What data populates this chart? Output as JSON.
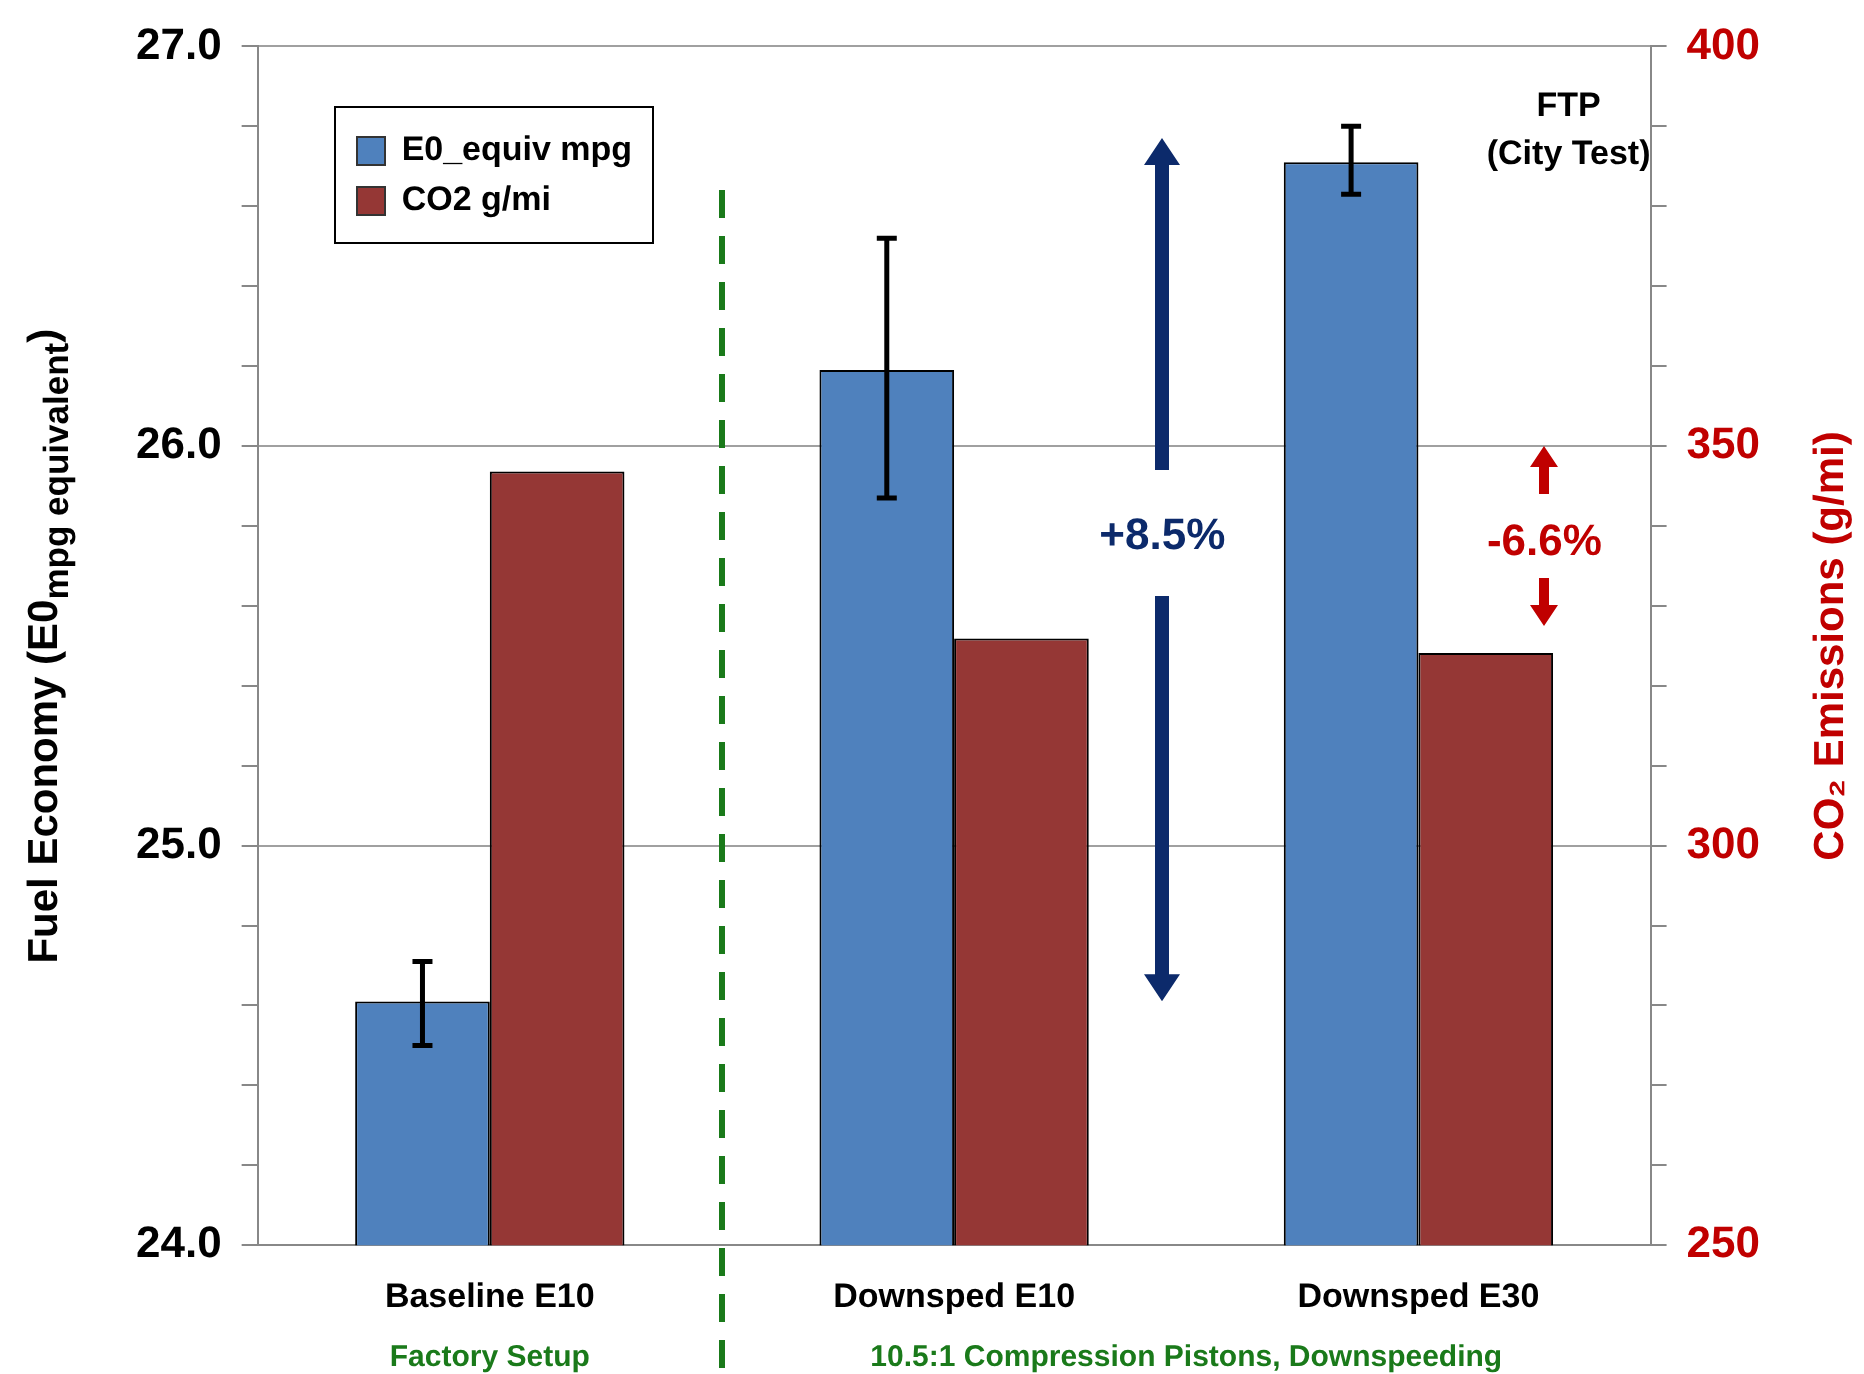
{
  "chart_data": {
    "type": "bar",
    "categories": [
      "Baseline E10",
      "Downsped E10",
      "Downsped E30"
    ],
    "ylabel": "Fuel Economy (E0$_{mpg equivalent}$)",
    "y2label": "CO₂ Emissions (g/mi)",
    "series": [
      {
        "name": "E0_equiv mpg",
        "color": "#4f81bd",
        "values": [
          24.61,
          26.19,
          26.71
        ],
        "errors": [
          [
            24.5,
            24.71
          ],
          [
            25.87,
            26.52
          ],
          [
            26.63,
            26.8
          ]
        ]
      },
      {
        "name": "CO2 g/mi",
        "color": "#953735",
        "axis": "y2",
        "values": [
          346.8,
          325.9,
          324.1
        ]
      }
    ],
    "ylim": [
      24,
      27
    ],
    "yticks": [
      {
        "value": 24,
        "label": "24.0"
      },
      {
        "value": 24.2,
        "label": null
      },
      {
        "value": 24.4,
        "label": null
      },
      {
        "value": 24.6,
        "label": null
      },
      {
        "value": 24.8,
        "label": null
      },
      {
        "value": 25,
        "label": "25.0"
      },
      {
        "value": 25.2,
        "label": null
      },
      {
        "value": 25.4,
        "label": null
      },
      {
        "value": 25.6,
        "label": null
      },
      {
        "value": 25.8,
        "label": null
      },
      {
        "value": 26,
        "label": "26.0"
      },
      {
        "value": 26.2,
        "label": null
      },
      {
        "value": 26.4,
        "label": null
      },
      {
        "value": 26.6,
        "label": null
      },
      {
        "value": 26.8,
        "label": null
      },
      {
        "value": 27,
        "label": "27.0"
      }
    ],
    "y2lim": [
      250,
      400
    ],
    "y2ticks": [
      250,
      {
        "value": 260,
        "label": null
      },
      {
        "value": 270,
        "label": null
      },
      {
        "value": 280,
        "label": null
      },
      {
        "value": 290,
        "label": null
      },
      300,
      {
        "value": 310,
        "label": null
      },
      {
        "value": 320,
        "label": null
      },
      {
        "value": 330,
        "label": null
      },
      {
        "value": 340,
        "label": null
      },
      350,
      {
        "value": 360,
        "label": null
      },
      {
        "value": 370,
        "label": null
      },
      {
        "value": 380,
        "label": null
      },
      {
        "value": 390,
        "label": null
      },
      400
    ],
    "grid": "y",
    "legend": "top left",
    "annotations": [
      "FTP\n(City Test)",
      "+8.5%",
      "-6.6%",
      "Factory Setup",
      "10.5:1 Compression Pistons, Downspeeding"
    ]
  }
}
